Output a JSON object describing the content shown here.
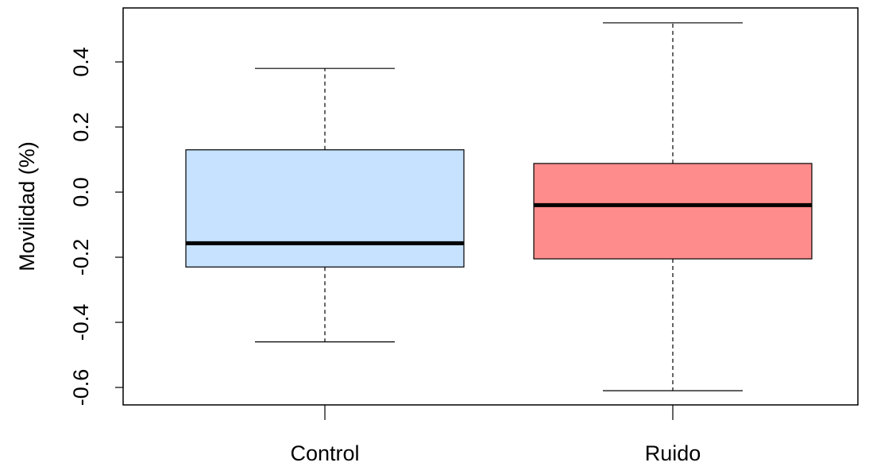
{
  "chart_data": {
    "type": "boxplot",
    "title": "",
    "xlabel": "",
    "ylabel": "Movilidad (%)",
    "ylim": [
      -0.65,
      0.57
    ],
    "yticks": [
      -0.6,
      -0.4,
      -0.2,
      0.0,
      0.2,
      0.4
    ],
    "ytick_labels": [
      "-0.6",
      "-0.4",
      "-0.2",
      "0.0",
      "0.2",
      "0.4"
    ],
    "categories": [
      "Control",
      "Ruido"
    ],
    "boxes": [
      {
        "category": "Control",
        "whisker_low": -0.46,
        "q1": -0.23,
        "median": -0.157,
        "q3": 0.13,
        "whisker_high": 0.38,
        "color": "#c6e2ff"
      },
      {
        "category": "Ruido",
        "whisker_low": -0.61,
        "q1": -0.205,
        "median": -0.04,
        "q3": 0.088,
        "whisker_high": 0.52,
        "color": "#ff8c8c"
      }
    ],
    "grid": false,
    "legend": "none"
  }
}
